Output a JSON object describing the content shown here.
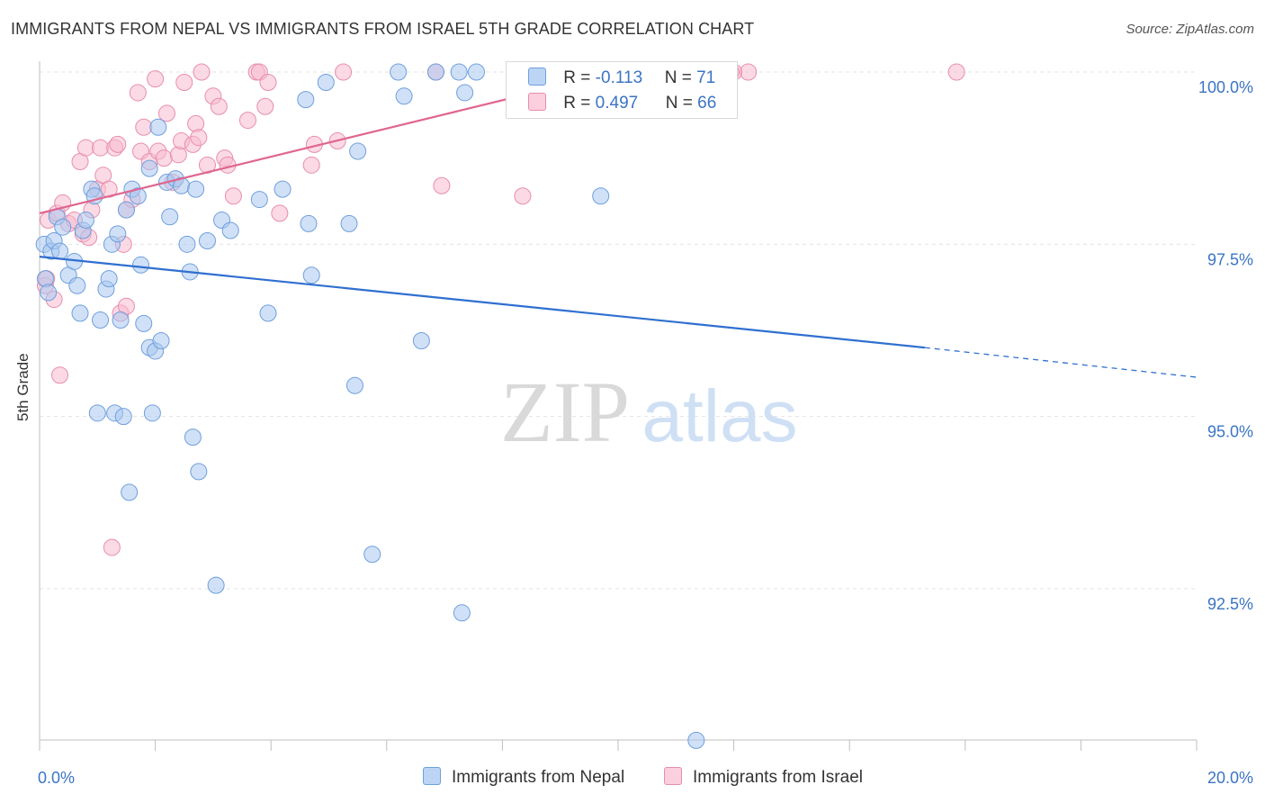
{
  "title": "IMMIGRANTS FROM NEPAL VS IMMIGRANTS FROM ISRAEL 5TH GRADE CORRELATION CHART",
  "source": "Source: ZipAtlas.com",
  "watermark": {
    "zip": "ZIP",
    "atlas": "atlas"
  },
  "legend": {
    "r_label": "R =",
    "n_label": "N =",
    "nepal": {
      "r": "-0.113",
      "n": "71"
    },
    "israel": {
      "r": "0.497",
      "n": "66"
    }
  },
  "colors": {
    "nepal_fill": "#a9c8f1",
    "nepal_stroke": "#6f9fdc",
    "nepal_line": "#2f6fd0",
    "israel_fill": "#f7bcd0",
    "israel_stroke": "#e88dab",
    "israel_line": "#e0658f",
    "axis_text": "#3b74c4",
    "grid": "#e3e3e3"
  },
  "chart_data": {
    "type": "scatter",
    "title": "IMMIGRANTS FROM NEPAL VS IMMIGRANTS FROM ISRAEL 5TH GRADE CORRELATION CHART",
    "xlabel": "",
    "ylabel": "5th Grade",
    "xlim": [
      0,
      20
    ],
    "ylim": [
      90.2,
      100.3
    ],
    "x_tick_labels": [
      "0.0%",
      "20.0%"
    ],
    "y_ticks": [
      92.5,
      95.0,
      97.5,
      100.0
    ],
    "y_tick_labels": [
      "92.5%",
      "95.0%",
      "97.5%",
      "100.0%"
    ],
    "grid": true,
    "legend_position": "bottom",
    "series": [
      {
        "name": "Immigrants from Nepal",
        "trend": {
          "x0": 0,
          "y0": 97.32,
          "x1": 15.3,
          "y1": 96.0,
          "dash_to_x": 20,
          "dash_to_y": 95.57
        },
        "points": [
          [
            0.08,
            97.5
          ],
          [
            0.1,
            97.0
          ],
          [
            0.15,
            96.8
          ],
          [
            0.2,
            97.4
          ],
          [
            0.25,
            97.55
          ],
          [
            0.3,
            97.9
          ],
          [
            0.35,
            97.4
          ],
          [
            0.4,
            97.75
          ],
          [
            0.5,
            97.05
          ],
          [
            0.6,
            97.25
          ],
          [
            0.65,
            96.9
          ],
          [
            0.7,
            96.5
          ],
          [
            0.75,
            97.7
          ],
          [
            0.8,
            97.85
          ],
          [
            0.9,
            98.3
          ],
          [
            0.95,
            98.2
          ],
          [
            1.0,
            95.05
          ],
          [
            1.05,
            96.4
          ],
          [
            1.15,
            96.85
          ],
          [
            1.2,
            97.0
          ],
          [
            1.25,
            97.5
          ],
          [
            1.3,
            95.05
          ],
          [
            1.35,
            97.65
          ],
          [
            1.4,
            96.4
          ],
          [
            1.45,
            95.0
          ],
          [
            1.5,
            98.0
          ],
          [
            1.55,
            93.9
          ],
          [
            1.6,
            98.3
          ],
          [
            1.7,
            98.2
          ],
          [
            1.75,
            97.2
          ],
          [
            1.8,
            96.35
          ],
          [
            1.9,
            98.6
          ],
          [
            1.9,
            96.0
          ],
          [
            1.95,
            95.05
          ],
          [
            2.0,
            95.95
          ],
          [
            2.05,
            99.2
          ],
          [
            2.1,
            96.1
          ],
          [
            2.2,
            98.4
          ],
          [
            2.25,
            97.9
          ],
          [
            2.35,
            98.45
          ],
          [
            2.45,
            98.35
          ],
          [
            2.55,
            97.5
          ],
          [
            2.6,
            97.1
          ],
          [
            2.65,
            94.7
          ],
          [
            2.7,
            98.3
          ],
          [
            2.75,
            94.2
          ],
          [
            2.9,
            97.55
          ],
          [
            3.05,
            92.55
          ],
          [
            3.15,
            97.85
          ],
          [
            3.3,
            97.7
          ],
          [
            3.8,
            98.15
          ],
          [
            3.95,
            96.5
          ],
          [
            4.2,
            98.3
          ],
          [
            4.6,
            99.6
          ],
          [
            4.65,
            97.8
          ],
          [
            4.7,
            97.05
          ],
          [
            4.95,
            99.85
          ],
          [
            5.35,
            97.8
          ],
          [
            5.45,
            95.45
          ],
          [
            5.5,
            98.85
          ],
          [
            5.75,
            93.0
          ],
          [
            6.2,
            100.0
          ],
          [
            6.3,
            99.65
          ],
          [
            6.6,
            96.1
          ],
          [
            6.85,
            100.0
          ],
          [
            7.25,
            100.0
          ],
          [
            7.3,
            92.15
          ],
          [
            7.35,
            99.7
          ],
          [
            7.55,
            100.0
          ],
          [
            9.7,
            98.2
          ],
          [
            11.35,
            90.3
          ]
        ]
      },
      {
        "name": "Immigrants from Israel",
        "trend": {
          "x0": 0,
          "y0": 97.95,
          "x1": 10.0,
          "y1": 100.0
        },
        "points": [
          [
            0.1,
            96.9
          ],
          [
            0.12,
            97.0
          ],
          [
            0.15,
            97.85
          ],
          [
            0.25,
            96.7
          ],
          [
            0.3,
            97.95
          ],
          [
            0.35,
            95.6
          ],
          [
            0.4,
            98.1
          ],
          [
            0.5,
            97.8
          ],
          [
            0.6,
            97.85
          ],
          [
            0.7,
            98.7
          ],
          [
            0.75,
            97.65
          ],
          [
            0.8,
            98.9
          ],
          [
            0.85,
            97.6
          ],
          [
            0.9,
            98.0
          ],
          [
            1.0,
            98.3
          ],
          [
            1.05,
            98.9
          ],
          [
            1.1,
            98.5
          ],
          [
            1.2,
            98.3
          ],
          [
            1.3,
            98.9
          ],
          [
            1.35,
            98.95
          ],
          [
            1.4,
            96.5
          ],
          [
            1.45,
            97.5
          ],
          [
            1.5,
            98.0
          ],
          [
            1.5,
            96.6
          ],
          [
            1.6,
            98.15
          ],
          [
            1.7,
            99.7
          ],
          [
            1.75,
            98.85
          ],
          [
            1.8,
            99.2
          ],
          [
            1.9,
            98.7
          ],
          [
            2.0,
            99.9
          ],
          [
            2.05,
            98.85
          ],
          [
            2.15,
            98.75
          ],
          [
            2.2,
            99.4
          ],
          [
            2.3,
            98.4
          ],
          [
            2.4,
            98.8
          ],
          [
            2.45,
            99.0
          ],
          [
            2.5,
            99.85
          ],
          [
            2.65,
            98.95
          ],
          [
            2.7,
            99.25
          ],
          [
            2.75,
            99.05
          ],
          [
            2.8,
            100.0
          ],
          [
            2.9,
            98.65
          ],
          [
            3.0,
            99.65
          ],
          [
            3.1,
            99.5
          ],
          [
            3.2,
            98.75
          ],
          [
            3.25,
            98.65
          ],
          [
            3.35,
            98.2
          ],
          [
            3.6,
            99.3
          ],
          [
            3.75,
            100.0
          ],
          [
            3.8,
            100.0
          ],
          [
            3.9,
            99.5
          ],
          [
            3.95,
            99.85
          ],
          [
            4.15,
            97.95
          ],
          [
            4.7,
            98.65
          ],
          [
            4.75,
            98.95
          ],
          [
            5.25,
            100.0
          ],
          [
            5.15,
            99.0
          ],
          [
            6.85,
            100.0
          ],
          [
            6.95,
            98.35
          ],
          [
            8.35,
            98.2
          ],
          [
            10.5,
            100.0
          ],
          [
            12.25,
            100.0
          ],
          [
            12.0,
            100.0
          ],
          [
            11.95,
            100.0
          ],
          [
            15.85,
            100.0
          ],
          [
            1.25,
            93.1
          ]
        ]
      }
    ]
  }
}
